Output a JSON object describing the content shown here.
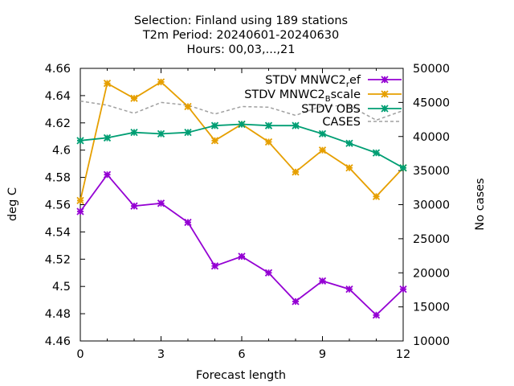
{
  "chart_data": {
    "type": "line",
    "title_lines": [
      "Selection: Finland using   189 stations",
      "T2m   Period: 20240601-20240630",
      "Hours: 00,03,...,21"
    ],
    "xlabel": "Forecast length",
    "ylabel": "deg C",
    "y2label": "No cases",
    "xlim": [
      0,
      12
    ],
    "ylim": [
      4.46,
      4.66
    ],
    "y2lim": [
      10000,
      50000
    ],
    "xticks": [
      "0",
      "3",
      "6",
      "9",
      "12"
    ],
    "xtick_values": [
      0,
      3,
      6,
      9,
      12
    ],
    "yticks": [
      "4.46",
      "4.48",
      "4.5",
      "4.52",
      "4.54",
      "4.56",
      "4.58",
      "4.6",
      "4.62",
      "4.64",
      "4.66"
    ],
    "ytick_values": [
      4.46,
      4.48,
      4.5,
      4.52,
      4.54,
      4.56,
      4.58,
      4.6,
      4.62,
      4.64,
      4.66
    ],
    "y2ticks": [
      "10000",
      "15000",
      "20000",
      "25000",
      "30000",
      "35000",
      "40000",
      "45000",
      "50000"
    ],
    "y2tick_values": [
      10000,
      15000,
      20000,
      25000,
      30000,
      35000,
      40000,
      45000,
      50000
    ],
    "grid": false,
    "legend_position": "top-right",
    "x": [
      0,
      1,
      2,
      3,
      4,
      5,
      6,
      7,
      8,
      9,
      10,
      11,
      12
    ],
    "series": [
      {
        "name_parts": [
          "STDV MNWC2",
          "r",
          "ef"
        ],
        "color": "#9400d3",
        "axis": "y1",
        "style": "line-points",
        "values": [
          4.555,
          4.582,
          4.559,
          4.561,
          4.547,
          4.515,
          4.522,
          4.51,
          4.489,
          4.504,
          4.498,
          4.479,
          4.498
        ]
      },
      {
        "name_parts": [
          "STDV MNWC2",
          "B",
          "scale"
        ],
        "color": "#e69f00",
        "axis": "y1",
        "style": "line-points",
        "values": [
          4.563,
          4.649,
          4.638,
          4.65,
          4.632,
          4.607,
          4.619,
          4.606,
          4.584,
          4.6,
          4.587,
          4.566,
          4.587
        ]
      },
      {
        "name_parts": [
          "STDV OBS",
          "",
          ""
        ],
        "color": "#009e73",
        "axis": "y1",
        "style": "line-points",
        "values": [
          4.607,
          4.609,
          4.613,
          4.612,
          4.613,
          4.618,
          4.619,
          4.618,
          4.618,
          4.612,
          4.605,
          4.598,
          4.587
        ]
      },
      {
        "name_parts": [
          "CASES",
          "",
          ""
        ],
        "color": "#a0a0a0",
        "axis": "y2",
        "style": "dashed",
        "values": [
          45200,
          44600,
          43400,
          45000,
          44600,
          43300,
          44400,
          44300,
          43100,
          44500,
          44500,
          42400,
          43800
        ]
      }
    ]
  }
}
